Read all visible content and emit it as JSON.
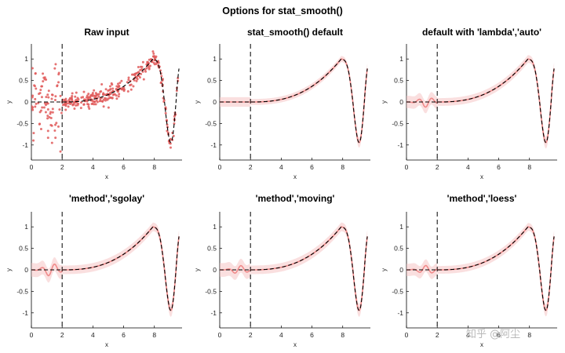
{
  "figure": {
    "title": "Options for stat_smooth()"
  },
  "colors": {
    "raw_points": "#e05a5a",
    "ribbon": "#f6c4c4",
    "smooth_line": "#f08a8a",
    "reference_line": "#000000",
    "vline": "#000000"
  },
  "watermark": "知乎 @阿尘",
  "chart_data": [
    {
      "type": "scatter",
      "title": "Raw input",
      "xlabel": "x",
      "ylabel": "y",
      "xlim": [
        0,
        9.8
      ],
      "ylim": [
        -1.35,
        1.35
      ],
      "xticks": [
        0,
        2,
        4,
        6,
        8
      ],
      "yticks": [
        -1,
        -0.5,
        0,
        0.5,
        1
      ],
      "xticklabels": [
        "0",
        "2",
        "4",
        "6",
        "8"
      ],
      "yticklabels": [
        "-1",
        "-0.5",
        "0",
        "0.5",
        "1"
      ],
      "vline_x": 2,
      "reference": "dashed black true function",
      "series": [
        {
          "kind": "noisy points",
          "noise_sd_x_lt_2": 0.45,
          "noise_sd_x_ge_2": 0.09
        }
      ]
    },
    {
      "type": "line",
      "title": "stat_smooth() default",
      "xlabel": "x",
      "ylabel": "y",
      "xlim": [
        0,
        9.8
      ],
      "ylim": [
        -1.35,
        1.35
      ],
      "xticks": [
        0,
        2,
        4,
        6,
        8
      ],
      "yticks": [
        -1,
        -0.5,
        0,
        0.5,
        1
      ],
      "xticklabels": [
        "0",
        "2",
        "4",
        "6",
        "8"
      ],
      "yticklabels": [
        "-1",
        "-0.5",
        "0",
        "0.5",
        "1"
      ],
      "vline_x": 2,
      "smooth_wiggle": 0.0,
      "ribbon_half_width": 0.07
    },
    {
      "type": "line",
      "title": "default with 'lambda','auto'",
      "xlabel": "x",
      "ylabel": "y",
      "xlim": [
        0,
        9.8
      ],
      "ylim": [
        -1.35,
        1.35
      ],
      "xticks": [
        0,
        2,
        4,
        6,
        8
      ],
      "yticks": [
        -1,
        -0.5,
        0,
        0.5,
        1
      ],
      "xticklabels": [
        "0",
        "2",
        "4",
        "6",
        "8"
      ],
      "yticklabels": [
        "-1",
        "-0.5",
        "0",
        "0.5",
        "1"
      ],
      "vline_x": 2,
      "smooth_wiggle": 0.12,
      "ribbon_half_width": 0.09
    },
    {
      "type": "line",
      "title": "'method','sgolay'",
      "xlabel": "x",
      "ylabel": "y",
      "xlim": [
        0,
        9.8
      ],
      "ylim": [
        -1.35,
        1.35
      ],
      "xticks": [
        0,
        2,
        4,
        6,
        8
      ],
      "yticks": [
        -1,
        -0.5,
        0,
        0.5,
        1
      ],
      "xticklabels": [
        "0",
        "2",
        "4",
        "6",
        "8"
      ],
      "yticklabels": [
        "-1",
        "-0.5",
        "0",
        "0.5",
        "1"
      ],
      "vline_x": 2,
      "smooth_wiggle": 0.15,
      "ribbon_half_width": 0.1
    },
    {
      "type": "line",
      "title": "'method','moving'",
      "xlabel": "x",
      "ylabel": "y",
      "xlim": [
        0,
        9.8
      ],
      "ylim": [
        -1.35,
        1.35
      ],
      "xticks": [
        0,
        2,
        4,
        6,
        8
      ],
      "yticks": [
        -1,
        -0.5,
        0,
        0.5,
        1
      ],
      "xticklabels": [
        "0",
        "2",
        "4",
        "6",
        "8"
      ],
      "yticklabels": [
        "-1",
        "-0.5",
        "0",
        "0.5",
        "1"
      ],
      "vline_x": 2,
      "smooth_wiggle": 0.1,
      "ribbon_half_width": 0.1
    },
    {
      "type": "line",
      "title": "'method','loess'",
      "xlabel": "x",
      "ylabel": "y",
      "xlim": [
        0,
        9.8
      ],
      "ylim": [
        -1.35,
        1.35
      ],
      "xticks": [
        0,
        2,
        4,
        6,
        8
      ],
      "yticks": [
        -1,
        -0.5,
        0,
        0.5,
        1
      ],
      "xticklabels": [
        "0",
        "2",
        "4",
        "6",
        "8"
      ],
      "yticklabels": [
        "-1",
        "-0.5",
        "0",
        "0.5",
        "1"
      ],
      "vline_x": 2,
      "smooth_wiggle": 0.1,
      "ribbon_half_width": 0.09
    }
  ]
}
